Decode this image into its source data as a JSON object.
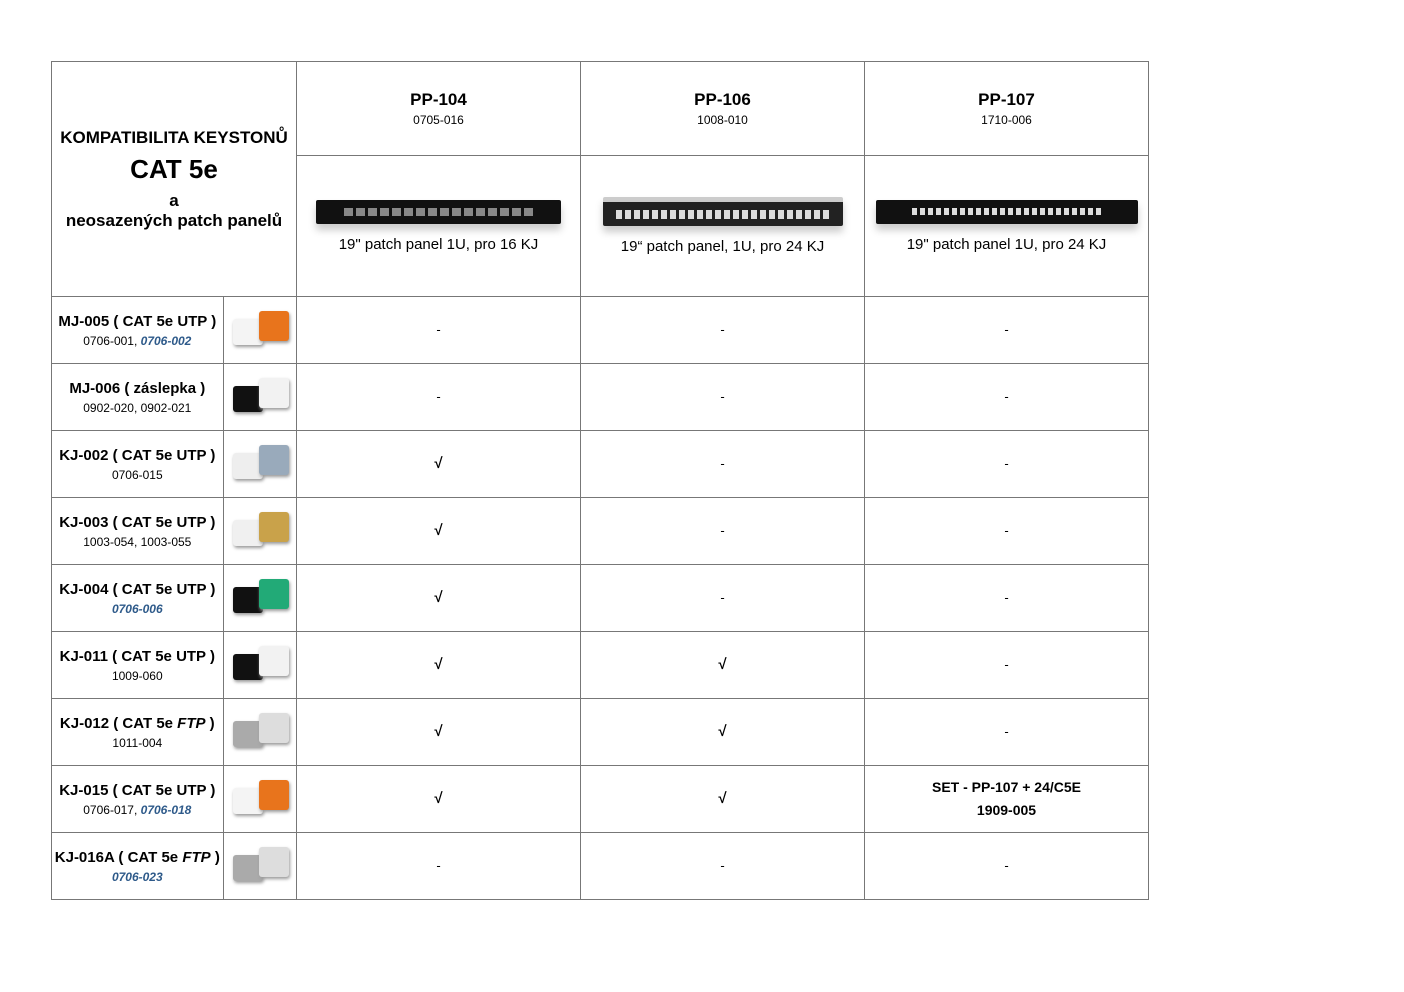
{
  "title": {
    "line1": "KOMPATIBILITA KEYSTONŮ",
    "line2": "CAT 5e",
    "line3": "a",
    "line4": "neosazených patch panelů"
  },
  "panels": [
    {
      "name": "PP-104",
      "code": "0705-016",
      "desc": "19\" patch panel 1U, pro 16 KJ",
      "ports": 16
    },
    {
      "name": "PP-106",
      "code": "1008-010",
      "desc": "19“ patch panel, 1U, pro 24 KJ",
      "ports": 24
    },
    {
      "name": "PP-107",
      "code": "1710-006",
      "desc": "19\" patch panel 1U, pro 24 KJ",
      "ports": 24
    }
  ],
  "colors": {
    "link_code": "#2e5a8a",
    "border": "#777777"
  },
  "rows": [
    {
      "pre": "MJ-005 ( CAT 5e ",
      "it": "",
      "post": "UTP )",
      "codes": [
        {
          "t": "0706-001, ",
          "b": false
        },
        {
          "t": "0706-002",
          "b": true
        }
      ],
      "img": "orange-white",
      "vals": [
        "-",
        "-",
        "-"
      ]
    },
    {
      "pre": "MJ-006 ( záslepka )",
      "it": "",
      "post": "",
      "codes": [
        {
          "t": "0902-020, 0902-021",
          "b": false
        }
      ],
      "img": "black-white",
      "vals": [
        "-",
        "-",
        "-"
      ]
    },
    {
      "pre": "KJ-002 ( CAT 5e ",
      "it": "",
      "post": "UTP )",
      "codes": [
        {
          "t": "0706-015",
          "b": false
        }
      ],
      "img": "white-blue",
      "vals": [
        "√",
        "-",
        "-"
      ]
    },
    {
      "pre": "KJ-003 ( CAT 5e ",
      "it": "",
      "post": "UTP )",
      "codes": [
        {
          "t": "1003-054, 1003-055",
          "b": false
        }
      ],
      "img": "white",
      "vals": [
        "√",
        "-",
        "-"
      ]
    },
    {
      "pre": "KJ-004 ( CAT 5e ",
      "it": "",
      "post": "UTP )",
      "codes": [
        {
          "t": "0706-006",
          "b": true
        }
      ],
      "img": "black-green",
      "vals": [
        "√",
        "-",
        "-"
      ]
    },
    {
      "pre": "KJ-011 ( CAT 5e ",
      "it": "",
      "post": "UTP )",
      "codes": [
        {
          "t": "1009-060",
          "b": false
        }
      ],
      "img": "black-white",
      "vals": [
        "√",
        "√",
        "-"
      ]
    },
    {
      "pre": "KJ-012 ( CAT 5e ",
      "it": "FTP",
      "post": " )",
      "codes": [
        {
          "t": "1011-004",
          "b": false
        }
      ],
      "img": "grey",
      "vals": [
        "√",
        "√",
        "-"
      ]
    },
    {
      "pre": "KJ-015 ( CAT 5e ",
      "it": "",
      "post": "UTP )",
      "codes": [
        {
          "t": "0706-017, ",
          "b": false
        },
        {
          "t": "0706-018",
          "b": true
        }
      ],
      "img": "orange-white",
      "vals": [
        "√",
        "√",
        "SET - PP-107 + 24/C5E|1909-005"
      ]
    },
    {
      "pre": "KJ-016A ( CAT 5e ",
      "it": "FTP",
      "post": " )",
      "codes": [
        {
          "t": "0706-023",
          "b": true
        }
      ],
      "img": "grey",
      "vals": [
        "-",
        "-",
        "-"
      ]
    }
  ]
}
